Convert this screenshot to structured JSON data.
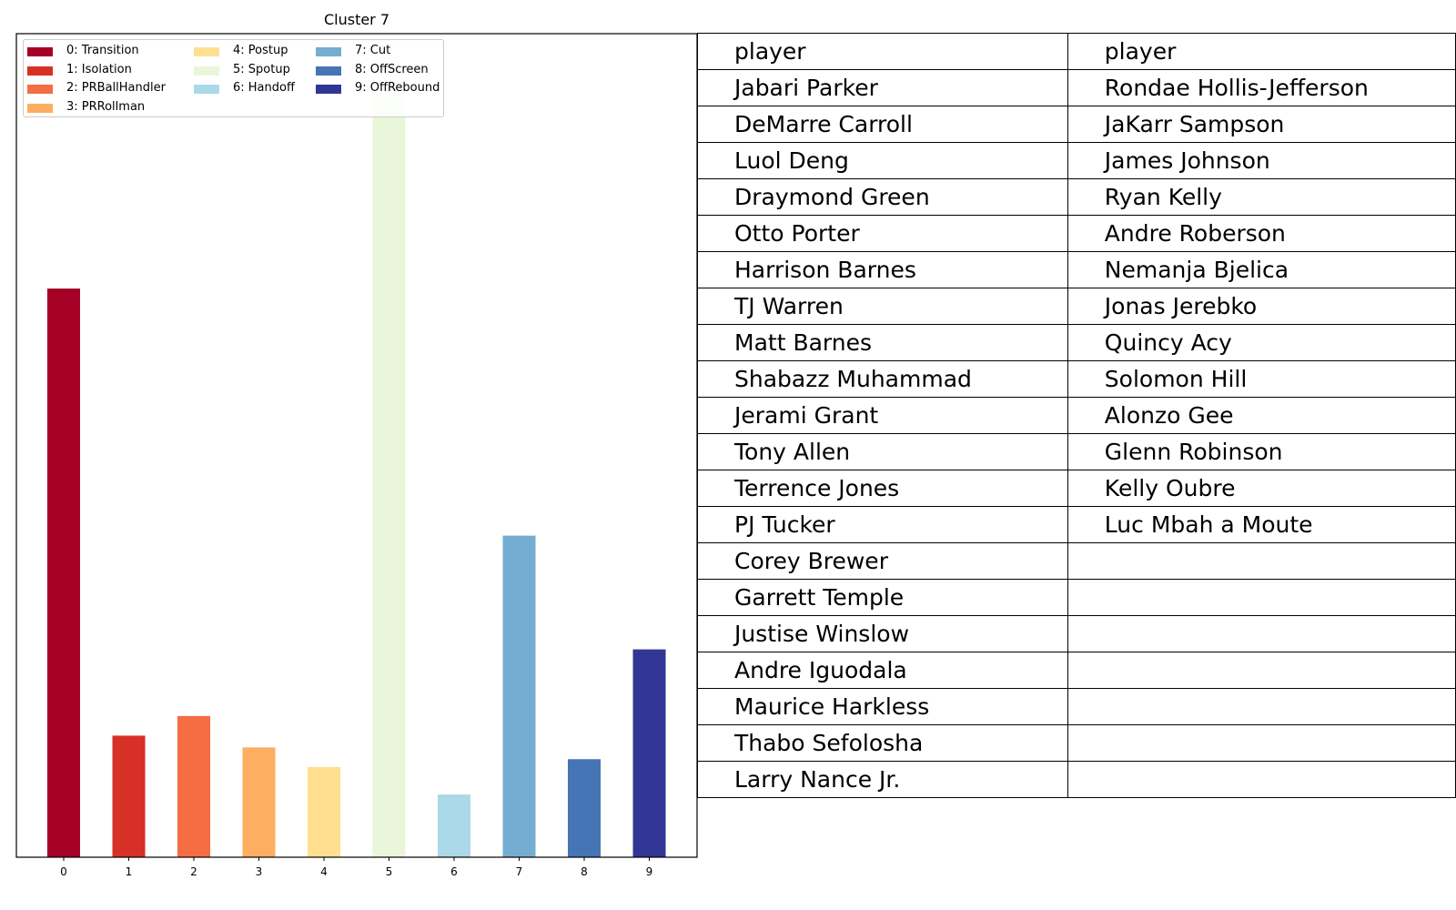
{
  "chart_data": {
    "type": "bar",
    "title": "Cluster 7",
    "xlabel": "",
    "ylabel": "",
    "categories": [
      "0",
      "1",
      "2",
      "3",
      "4",
      "5",
      "6",
      "7",
      "8",
      "9"
    ],
    "values": [
      0.145,
      0.031,
      0.036,
      0.028,
      0.023,
      0.196,
      0.016,
      0.082,
      0.025,
      0.053
    ],
    "ylim": [
      0,
      0.21
    ],
    "grid": false,
    "legend_placement": "top-left",
    "legend": [
      {
        "label": "0: Transition",
        "color": "#a50026"
      },
      {
        "label": "1: Isolation",
        "color": "#d73027"
      },
      {
        "label": "2: PRBallHandler",
        "color": "#f46d43"
      },
      {
        "label": "3: PRRollman",
        "color": "#fdae61"
      },
      {
        "label": "4: Postup",
        "color": "#fee090"
      },
      {
        "label": "5: Spotup",
        "color": "#e9f6d9"
      },
      {
        "label": "6: Handoff",
        "color": "#abd9e9"
      },
      {
        "label": "7: Cut",
        "color": "#74add1"
      },
      {
        "label": "8: OffScreen",
        "color": "#4575b4"
      },
      {
        "label": "9: OffRebound",
        "color": "#313695"
      }
    ]
  },
  "table": {
    "headers": [
      "player",
      "player"
    ],
    "rows": [
      [
        "Jabari Parker",
        "Rondae Hollis-Jefferson"
      ],
      [
        "DeMarre Carroll",
        "JaKarr Sampson"
      ],
      [
        "Luol Deng",
        "James Johnson"
      ],
      [
        "Draymond Green",
        "Ryan Kelly"
      ],
      [
        "Otto Porter",
        "Andre Roberson"
      ],
      [
        "Harrison Barnes",
        "Nemanja Bjelica"
      ],
      [
        "TJ Warren",
        "Jonas Jerebko"
      ],
      [
        "Matt Barnes",
        "Quincy Acy"
      ],
      [
        "Shabazz Muhammad",
        "Solomon Hill"
      ],
      [
        "Jerami Grant",
        "Alonzo Gee"
      ],
      [
        "Tony Allen",
        "Glenn Robinson"
      ],
      [
        "Terrence Jones",
        "Kelly Oubre"
      ],
      [
        "PJ Tucker",
        "Luc Mbah a Moute"
      ],
      [
        "Corey Brewer",
        ""
      ],
      [
        "Garrett Temple",
        ""
      ],
      [
        "Justise Winslow",
        ""
      ],
      [
        "Andre Iguodala",
        ""
      ],
      [
        "Maurice Harkless",
        ""
      ],
      [
        "Thabo Sefolosha",
        ""
      ],
      [
        "Larry Nance Jr.",
        ""
      ]
    ]
  }
}
